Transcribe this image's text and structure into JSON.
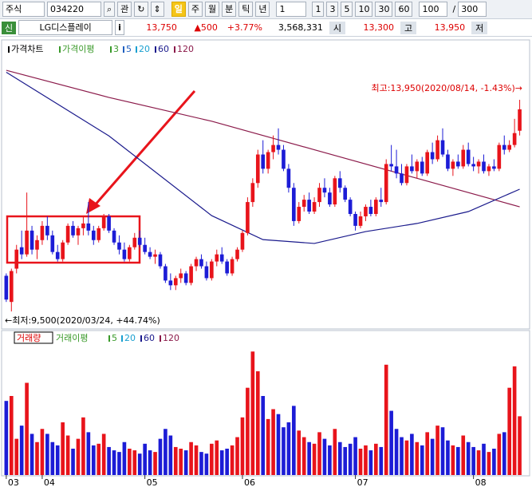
{
  "toolbar": {
    "market": "주식",
    "code": "034220",
    "watch": "관",
    "periods": [
      "일",
      "주",
      "월",
      "분",
      "틱",
      "년"
    ],
    "unit": "1",
    "intervals": [
      "1",
      "3",
      "5",
      "10",
      "30",
      "60"
    ],
    "count": "100",
    "slash": "/",
    "max": "300"
  },
  "quote": {
    "badge": "신",
    "name": "LG디스플레이",
    "info": "i",
    "price": "13,750",
    "change": "▲500",
    "rate": "+3.77%",
    "volume": "3,568,331",
    "open_label": "시",
    "open": "13,300",
    "high_label": "고",
    "high": "13,950",
    "low_label": "저"
  },
  "chart_data": {
    "type": "candlestick",
    "legend": {
      "title": "가격차트",
      "ma_title": "가격이평",
      "ma_periods": [
        "3",
        "5",
        "20",
        "60",
        "120"
      ]
    },
    "volume_legend": {
      "title": "거래량",
      "ma_title": "거래이평",
      "ma_periods": [
        "5",
        "20",
        "60",
        "120"
      ]
    },
    "up_color": "#e8141b",
    "down_color": "#1c1cd6",
    "ylim": [
      9250,
      15075
    ],
    "vlim": [
      0,
      8000000
    ],
    "xlim": [
      -0.6,
      101
    ],
    "xticks": [
      {
        "value": 0,
        "label": "03"
      },
      {
        "value": 7,
        "label": "04"
      },
      {
        "value": 27,
        "label": "05"
      },
      {
        "value": 46,
        "label": "06"
      },
      {
        "value": 68,
        "label": "07"
      },
      {
        "value": 91,
        "label": "08"
      }
    ],
    "annotations": {
      "high": "최고:13,950(2020/08/14, -1.43%)→",
      "low": "←최저:9,500(2020/03/24, +44.74%)"
    },
    "ohlc": [
      [
        10250,
        10300,
        9700,
        9750
      ],
      [
        9700,
        10400,
        9500,
        10350
      ],
      [
        10400,
        10900,
        10300,
        10800
      ],
      [
        10850,
        11200,
        10600,
        10700
      ],
      [
        10700,
        12000,
        10650,
        11200
      ],
      [
        11200,
        11300,
        10700,
        10800
      ],
      [
        10800,
        11100,
        10600,
        11000
      ],
      [
        11000,
        11400,
        10900,
        11300
      ],
      [
        11300,
        11500,
        11000,
        11100
      ],
      [
        11100,
        11200,
        10700,
        10750
      ],
      [
        10750,
        10900,
        10550,
        10600
      ],
      [
        10600,
        11000,
        10550,
        10950
      ],
      [
        10950,
        11350,
        10900,
        11300
      ],
      [
        11300,
        11400,
        11050,
        11100
      ],
      [
        11100,
        11300,
        10900,
        11250
      ],
      [
        11250,
        11500,
        11100,
        11350
      ],
      [
        11350,
        11800,
        11100,
        11200
      ],
      [
        11200,
        11300,
        10900,
        11000
      ],
      [
        11000,
        11300,
        10950,
        11250
      ],
      [
        11250,
        11550,
        11200,
        11500
      ],
      [
        11500,
        11550,
        11150,
        11200
      ],
      [
        11200,
        11250,
        10900,
        10950
      ],
      [
        10950,
        11100,
        10700,
        10800
      ],
      [
        10800,
        10950,
        10550,
        10600
      ],
      [
        10600,
        10900,
        10550,
        10850
      ],
      [
        10850,
        11150,
        10800,
        11050
      ],
      [
        11050,
        11200,
        10850,
        10900
      ],
      [
        10900,
        11050,
        10700,
        10750
      ],
      [
        10750,
        10850,
        10600,
        10650
      ],
      [
        10650,
        10800,
        10500,
        10700
      ],
      [
        10700,
        10750,
        10400,
        10450
      ],
      [
        10450,
        10500,
        10100,
        10150
      ],
      [
        10150,
        10300,
        9950,
        10050
      ],
      [
        10050,
        10250,
        9950,
        10200
      ],
      [
        10200,
        10400,
        10100,
        10300
      ],
      [
        10300,
        10350,
        10050,
        10100
      ],
      [
        10100,
        10500,
        10050,
        10450
      ],
      [
        10450,
        10650,
        10350,
        10600
      ],
      [
        10600,
        10700,
        10400,
        10450
      ],
      [
        10450,
        10550,
        10150,
        10200
      ],
      [
        10200,
        10600,
        10150,
        10550
      ],
      [
        10550,
        10800,
        10450,
        10700
      ],
      [
        10700,
        10850,
        10500,
        10550
      ],
      [
        10550,
        10600,
        10250,
        10300
      ],
      [
        10300,
        10650,
        10250,
        10600
      ],
      [
        10600,
        10850,
        10550,
        10800
      ],
      [
        10800,
        11200,
        10750,
        11150
      ],
      [
        11150,
        11900,
        11100,
        11800
      ],
      [
        11800,
        12300,
        11700,
        12200
      ],
      [
        12200,
        12900,
        12100,
        12800
      ],
      [
        12800,
        13100,
        12400,
        12500
      ],
      [
        12500,
        12900,
        12400,
        12850
      ],
      [
        12850,
        13200,
        12700,
        13000
      ],
      [
        13000,
        13350,
        12800,
        12900
      ],
      [
        12900,
        13000,
        12450,
        12500
      ],
      [
        12500,
        12600,
        12000,
        12100
      ],
      [
        12100,
        12200,
        11300,
        11400
      ],
      [
        11400,
        11800,
        11350,
        11700
      ],
      [
        11700,
        11950,
        11600,
        11850
      ],
      [
        11850,
        12000,
        11550,
        11600
      ],
      [
        11600,
        11900,
        11550,
        11800
      ],
      [
        11800,
        12200,
        11700,
        12100
      ],
      [
        12100,
        12300,
        11900,
        12000
      ],
      [
        12000,
        12100,
        11700,
        11750
      ],
      [
        11750,
        12350,
        11700,
        12300
      ],
      [
        12300,
        12450,
        12000,
        12100
      ],
      [
        12100,
        12150,
        11800,
        11850
      ],
      [
        11850,
        11900,
        11500,
        11550
      ],
      [
        11550,
        11600,
        11200,
        11300
      ],
      [
        11300,
        11600,
        11250,
        11500
      ],
      [
        11500,
        11750,
        11400,
        11700
      ],
      [
        11700,
        11850,
        11500,
        11550
      ],
      [
        11550,
        11900,
        11500,
        11850
      ],
      [
        11850,
        12100,
        11700,
        11800
      ],
      [
        11800,
        12700,
        11750,
        12600
      ],
      [
        12600,
        13000,
        12450,
        12550
      ],
      [
        12550,
        12900,
        12300,
        12400
      ],
      [
        12400,
        12600,
        12150,
        12200
      ],
      [
        12200,
        12600,
        12150,
        12550
      ],
      [
        12550,
        12800,
        12400,
        12450
      ],
      [
        12450,
        12700,
        12300,
        12650
      ],
      [
        12650,
        12750,
        12350,
        12400
      ],
      [
        12400,
        12900,
        12350,
        12850
      ],
      [
        12850,
        13050,
        12600,
        12700
      ],
      [
        12700,
        13200,
        12650,
        13100
      ],
      [
        13100,
        13350,
        12750,
        12800
      ],
      [
        12800,
        12900,
        12450,
        12500
      ],
      [
        12500,
        12700,
        12350,
        12650
      ],
      [
        12650,
        12800,
        12500,
        12550
      ],
      [
        12550,
        13000,
        12500,
        12900
      ],
      [
        12900,
        13050,
        12550,
        12600
      ],
      [
        12600,
        12750,
        12450,
        12550
      ],
      [
        12550,
        12700,
        12400,
        12650
      ],
      [
        12650,
        12800,
        12400,
        12450
      ],
      [
        12450,
        12600,
        12350,
        12550
      ],
      [
        12550,
        12700,
        12450,
        12500
      ],
      [
        12500,
        13050,
        12450,
        13000
      ],
      [
        13000,
        13200,
        12800,
        12900
      ],
      [
        12900,
        13100,
        12850,
        13000
      ],
      [
        13000,
        13550,
        12950,
        13250
      ],
      [
        13300,
        13950,
        13200,
        13750
      ]
    ],
    "volumes": [
      4500000,
      4800000,
      2200000,
      3000000,
      5600000,
      2500000,
      2000000,
      2800000,
      2500000,
      2000000,
      1800000,
      3200000,
      2400000,
      1600000,
      2200000,
      3500000,
      2600000,
      1800000,
      1900000,
      2500000,
      1700000,
      1500000,
      1400000,
      2000000,
      1600000,
      1500000,
      1300000,
      1900000,
      1500000,
      1400000,
      2200000,
      2800000,
      2400000,
      1700000,
      1600000,
      1500000,
      2000000,
      1800000,
      1400000,
      1300000,
      1900000,
      2100000,
      1500000,
      1600000,
      1800000,
      2300000,
      3500000,
      5300000,
      7500000,
      6300000,
      4800000,
      3400000,
      4000000,
      3700000,
      2900000,
      3200000,
      4200000,
      2700000,
      2300000,
      2000000,
      1900000,
      2600000,
      2200000,
      1800000,
      2800000,
      2000000,
      1700000,
      1900000,
      2300000,
      1600000,
      1800000,
      1500000,
      1900000,
      1700000,
      6700000,
      3900000,
      2800000,
      2300000,
      2100000,
      2500000,
      2000000,
      1800000,
      2600000,
      2200000,
      3000000,
      2900000,
      2100000,
      1800000,
      1700000,
      2400000,
      2000000,
      1700000,
      1500000,
      1900000,
      1400000,
      1600000,
      2500000,
      2600000,
      5300000,
      6600000,
      3568331
    ],
    "ma_lines": [
      {
        "name": "120",
        "color": "#8b1a4a",
        "x": [
          0,
          20,
          40,
          60,
          80,
          100
        ],
        "values": [
          14570,
          14000,
          13500,
          12900,
          12300,
          11700
        ]
      },
      {
        "name": "60",
        "color": "#1a1a8c",
        "x": [
          0,
          20,
          40,
          50,
          60,
          70,
          80,
          90,
          100
        ],
        "values": [
          14530,
          13190,
          11515,
          11010,
          10930,
          11180,
          11350,
          11600,
          12070
        ]
      }
    ]
  }
}
